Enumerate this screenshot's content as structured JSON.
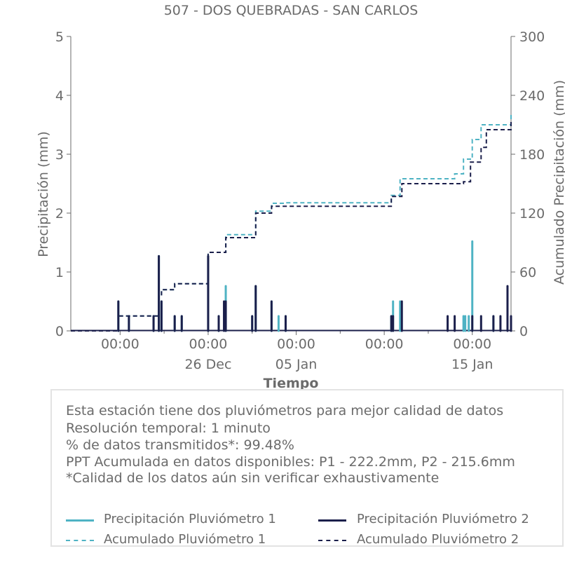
{
  "chart_data": {
    "type": "line",
    "title": "507 - DOS QUEBRADAS - SAN CARLOS",
    "xlabel": "Tiempo",
    "ylabel_left": "Precipitación (mm)",
    "ylabel_right": "Acumulado Precipitación (mm)",
    "y_left_lim": [
      0,
      5
    ],
    "y_right_lim": [
      0,
      300
    ],
    "y_left_ticks": [
      "0",
      "1",
      "2",
      "3",
      "4",
      "5"
    ],
    "y_right_ticks": [
      "0",
      "60",
      "120",
      "180",
      "240",
      "300"
    ],
    "x_range_days": [
      -4.8,
      20.2
    ],
    "x_ticks": [
      {
        "day": -2,
        "time": "00:00",
        "date": ""
      },
      {
        "day": 3,
        "time": "00:00",
        "date": "26 Dec"
      },
      {
        "day": 8,
        "time": "00:00",
        "date": "05 Jan"
      },
      {
        "day": 13,
        "time": "00:00",
        "date": ""
      },
      {
        "day": 18,
        "time": "00:00",
        "date": "15 Jan"
      }
    ],
    "x_minor_ticks_days": [
      0.5,
      5.5,
      10.5,
      15.5,
      20.5
    ],
    "series": [
      {
        "name": "Precipitación Pluviómetro 1",
        "kind": "bars",
        "color": "#4fb3c4",
        "points": [
          [
            -2.1,
            0.5
          ],
          [
            -1.5,
            0.25
          ],
          [
            -0.1,
            0.25
          ],
          [
            0.2,
            1.27
          ],
          [
            0.35,
            0.5
          ],
          [
            1.1,
            0.25
          ],
          [
            1.5,
            0.25
          ],
          [
            3.0,
            1.27
          ],
          [
            3.6,
            0.25
          ],
          [
            4.0,
            0.76
          ],
          [
            5.5,
            0.25
          ],
          [
            5.7,
            0.76
          ],
          [
            6.6,
            0.5
          ],
          [
            7.0,
            0.25
          ],
          [
            7.4,
            0.25
          ],
          [
            13.4,
            0.25
          ],
          [
            13.5,
            0.5
          ],
          [
            13.9,
            0.5
          ],
          [
            17.5,
            0.25
          ],
          [
            17.6,
            0.25
          ],
          [
            17.8,
            0.25
          ],
          [
            18.0,
            1.52
          ],
          [
            19.2,
            0.25
          ]
        ]
      },
      {
        "name": "Precipitación Pluviómetro 2",
        "kind": "bars",
        "color": "#1b1f4b",
        "points": [
          [
            -2.1,
            0.5
          ],
          [
            -1.5,
            0.25
          ],
          [
            -0.1,
            0.25
          ],
          [
            0.2,
            1.27
          ],
          [
            0.35,
            0.5
          ],
          [
            1.1,
            0.25
          ],
          [
            1.5,
            0.25
          ],
          [
            3.0,
            1.27
          ],
          [
            3.6,
            0.25
          ],
          [
            3.9,
            0.5
          ],
          [
            4.0,
            0.5
          ],
          [
            5.5,
            0.25
          ],
          [
            5.7,
            0.76
          ],
          [
            6.6,
            0.5
          ],
          [
            7.4,
            0.25
          ],
          [
            13.4,
            0.25
          ],
          [
            13.5,
            0.25
          ],
          [
            14.0,
            0.5
          ],
          [
            16.6,
            0.25
          ],
          [
            17.0,
            0.25
          ],
          [
            18.0,
            0.25
          ],
          [
            18.5,
            0.25
          ],
          [
            19.2,
            0.25
          ],
          [
            19.6,
            0.25
          ],
          [
            20.0,
            0.76
          ],
          [
            20.2,
            0.25
          ]
        ]
      },
      {
        "name": "Acumulado Pluviómetro 1",
        "kind": "step",
        "color": "#4fb3c4",
        "dash": "6,4",
        "points": [
          [
            -4.8,
            0
          ],
          [
            -2.1,
            0
          ],
          [
            -2.1,
            15.2
          ],
          [
            0.2,
            15.2
          ],
          [
            0.2,
            35
          ],
          [
            0.35,
            35
          ],
          [
            0.35,
            42
          ],
          [
            1.1,
            42
          ],
          [
            1.1,
            48
          ],
          [
            2.2,
            48
          ],
          [
            3.0,
            48
          ],
          [
            3.0,
            80
          ],
          [
            4.0,
            80
          ],
          [
            4.0,
            98
          ],
          [
            5.7,
            98
          ],
          [
            5.7,
            122
          ],
          [
            6.6,
            122
          ],
          [
            6.6,
            130
          ],
          [
            7.4,
            130
          ],
          [
            7.4,
            130.5
          ],
          [
            11.3,
            130.5
          ],
          [
            13.4,
            130.5
          ],
          [
            13.4,
            138
          ],
          [
            13.9,
            138
          ],
          [
            13.9,
            155
          ],
          [
            16.0,
            155
          ],
          [
            16.6,
            155
          ],
          [
            17.0,
            155
          ],
          [
            17.0,
            160
          ],
          [
            17.5,
            160
          ],
          [
            17.5,
            175
          ],
          [
            18.0,
            175
          ],
          [
            18.0,
            195
          ],
          [
            18.5,
            195
          ],
          [
            18.5,
            210
          ],
          [
            21.0,
            210
          ],
          [
            21.0,
            222.2
          ],
          [
            24.0,
            222.2
          ]
        ]
      },
      {
        "name": "Acumulado Pluviómetro 2",
        "kind": "step",
        "color": "#1b1f4b",
        "dash": "6,4",
        "points": [
          [
            -4.8,
            0
          ],
          [
            -2.1,
            0
          ],
          [
            -2.1,
            15.2
          ],
          [
            0.2,
            15.2
          ],
          [
            0.2,
            35
          ],
          [
            0.35,
            35
          ],
          [
            0.35,
            42
          ],
          [
            1.1,
            42
          ],
          [
            1.1,
            48
          ],
          [
            3.0,
            48
          ],
          [
            3.0,
            80
          ],
          [
            4.0,
            80
          ],
          [
            4.0,
            95
          ],
          [
            5.7,
            95
          ],
          [
            5.7,
            120
          ],
          [
            6.6,
            120
          ],
          [
            6.6,
            127
          ],
          [
            11.3,
            127
          ],
          [
            13.4,
            127
          ],
          [
            13.4,
            137
          ],
          [
            14.0,
            137
          ],
          [
            14.0,
            150
          ],
          [
            17.0,
            150
          ],
          [
            17.5,
            150
          ],
          [
            17.5,
            152
          ],
          [
            17.9,
            152
          ],
          [
            17.9,
            172
          ],
          [
            18.5,
            172
          ],
          [
            18.5,
            187
          ],
          [
            18.8,
            187
          ],
          [
            18.8,
            205
          ],
          [
            21.0,
            205
          ],
          [
            21.0,
            215.6
          ],
          [
            24.0,
            215.6
          ]
        ]
      }
    ]
  },
  "info": {
    "line1": "Esta estación tiene dos pluviómetros para mejor calidad de datos",
    "line2": "Resolución temporal: 1 minuto",
    "line3": "% de datos transmitidos*: 99.48%",
    "line4": "PPT Acumulada en datos disponibles: P1 - 222.2mm, P2 - 215.6mm",
    "line5": "*Calidad de los datos aún sin verificar exhaustivamente"
  },
  "legend": {
    "p1": "Precipitación Pluviómetro 1",
    "p2": "Precipitación Pluviómetro 2",
    "a1": "Acumulado Pluviómetro 1",
    "a2": "Acumulado Pluviómetro 2"
  },
  "colors": {
    "p1": "#4fb3c4",
    "p2": "#1b1f4b",
    "axis": "#6b6b6b"
  }
}
